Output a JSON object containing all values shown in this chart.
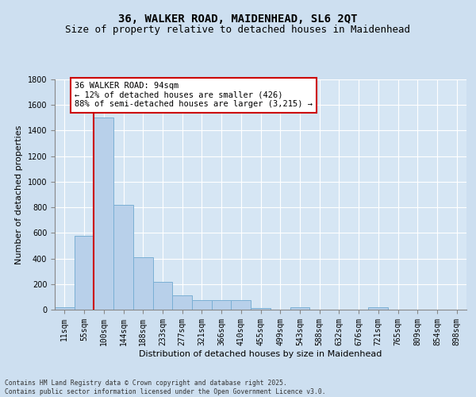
{
  "title1": "36, WALKER ROAD, MAIDENHEAD, SL6 2QT",
  "title2": "Size of property relative to detached houses in Maidenhead",
  "xlabel": "Distribution of detached houses by size in Maidenhead",
  "ylabel": "Number of detached properties",
  "categories": [
    "11sqm",
    "55sqm",
    "100sqm",
    "144sqm",
    "188sqm",
    "233sqm",
    "277sqm",
    "321sqm",
    "366sqm",
    "410sqm",
    "455sqm",
    "499sqm",
    "543sqm",
    "588sqm",
    "632sqm",
    "676sqm",
    "721sqm",
    "765sqm",
    "809sqm",
    "854sqm",
    "898sqm"
  ],
  "values": [
    20,
    580,
    1500,
    820,
    410,
    220,
    110,
    75,
    75,
    75,
    10,
    0,
    20,
    0,
    0,
    0,
    20,
    0,
    0,
    0,
    0
  ],
  "bar_color": "#b8d0ea",
  "bar_edge_color": "#7aafd4",
  "fig_bg_color": "#cddff0",
  "plot_bg_color": "#d6e6f4",
  "vline_x_index": 2,
  "vline_color": "#cc0000",
  "annotation_text": "36 WALKER ROAD: 94sqm\n← 12% of detached houses are smaller (426)\n88% of semi-detached houses are larger (3,215) →",
  "annotation_box_color": "#ffffff",
  "annotation_box_edge": "#cc0000",
  "ylim": [
    0,
    1800
  ],
  "yticks": [
    0,
    200,
    400,
    600,
    800,
    1000,
    1200,
    1400,
    1600,
    1800
  ],
  "footer": "Contains HM Land Registry data © Crown copyright and database right 2025.\nContains public sector information licensed under the Open Government Licence v3.0.",
  "title_fontsize": 10,
  "subtitle_fontsize": 9,
  "label_fontsize": 8,
  "tick_fontsize": 7,
  "annotation_fontsize": 7.5
}
